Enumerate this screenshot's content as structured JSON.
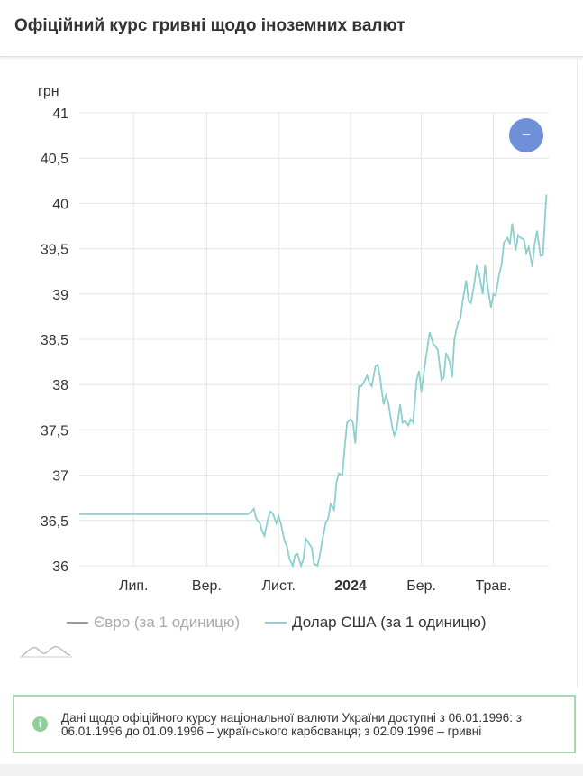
{
  "header": {
    "title": "Офіційний курс гривні щодо іноземних валют"
  },
  "controls": {
    "collapse_symbol": "−"
  },
  "legend": {
    "euro_label": "Євро (за 1 одиницю)",
    "usd_label": "Долар США (за 1 одиницю)"
  },
  "info": {
    "icon": "info-icon",
    "text": "Дані щодо офіційного курсу національної валюти України доступні з 06.01.1996: з 06.01.1996 до 01.09.1996 – українського карбованця; з 02.09.1996 – гривні"
  },
  "colors": {
    "usd_line": "#8ccfd0",
    "euro_line": "#999999",
    "button": "#6f8fd8",
    "info_border": "#a8d8b5"
  },
  "chart_data": {
    "type": "line",
    "ylabel": "грн",
    "ylim": [
      36,
      41
    ],
    "yticks": [
      {
        "value": 41,
        "label": "41"
      },
      {
        "value": 40.5,
        "label": "40,5"
      },
      {
        "value": 40,
        "label": "40"
      },
      {
        "value": 39.5,
        "label": "39,5"
      },
      {
        "value": 39,
        "label": "39"
      },
      {
        "value": 38.5,
        "label": "38,5"
      },
      {
        "value": 38,
        "label": "38"
      },
      {
        "value": 37.5,
        "label": "37,5"
      },
      {
        "value": 37,
        "label": "37"
      },
      {
        "value": 36.5,
        "label": "36,5"
      },
      {
        "value": 36,
        "label": "36"
      }
    ],
    "xlim": [
      "2023-05-16",
      "2024-06-17"
    ],
    "xticks": [
      {
        "date": "2023-07-01",
        "label": "Лип.",
        "bold": false
      },
      {
        "date": "2023-09-01",
        "label": "Вер.",
        "bold": false
      },
      {
        "date": "2023-11-01",
        "label": "Лист.",
        "bold": false
      },
      {
        "date": "2024-01-01",
        "label": "2024",
        "bold": true
      },
      {
        "date": "2024-03-01",
        "label": "Бер.",
        "bold": false
      },
      {
        "date": "2024-05-01",
        "label": "Трав.",
        "bold": false
      }
    ],
    "grid": true,
    "series": [
      {
        "name": "Долар США (за 1 одиницю)",
        "visible": true,
        "points": [
          [
            "2023-05-16",
            36.57
          ],
          [
            "2023-10-06",
            36.57
          ],
          [
            "2023-10-09",
            36.6
          ],
          [
            "2023-10-11",
            36.63
          ],
          [
            "2023-10-13",
            36.52
          ],
          [
            "2023-10-16",
            36.47
          ],
          [
            "2023-10-18",
            36.38
          ],
          [
            "2023-10-20",
            36.33
          ],
          [
            "2023-10-23",
            36.52
          ],
          [
            "2023-10-25",
            36.6
          ],
          [
            "2023-10-27",
            36.58
          ],
          [
            "2023-10-30",
            36.47
          ],
          [
            "2023-11-01",
            36.55
          ],
          [
            "2023-11-03",
            36.46
          ],
          [
            "2023-11-06",
            36.27
          ],
          [
            "2023-11-08",
            36.22
          ],
          [
            "2023-11-10",
            36.08
          ],
          [
            "2023-11-13",
            36.0
          ],
          [
            "2023-11-15",
            36.12
          ],
          [
            "2023-11-17",
            36.13
          ],
          [
            "2023-11-20",
            36.0
          ],
          [
            "2023-11-22",
            36.07
          ],
          [
            "2023-11-24",
            36.3
          ],
          [
            "2023-11-27",
            36.24
          ],
          [
            "2023-11-29",
            36.2
          ],
          [
            "2023-12-01",
            36.02
          ],
          [
            "2023-12-04",
            36.0
          ],
          [
            "2023-12-06",
            36.12
          ],
          [
            "2023-12-08",
            36.28
          ],
          [
            "2023-12-11",
            36.48
          ],
          [
            "2023-12-13",
            36.52
          ],
          [
            "2023-12-15",
            36.68
          ],
          [
            "2023-12-18",
            36.62
          ],
          [
            "2023-12-20",
            36.92
          ],
          [
            "2023-12-22",
            37.02
          ],
          [
            "2023-12-25",
            37.0
          ],
          [
            "2023-12-27",
            37.3
          ],
          [
            "2023-12-29",
            37.58
          ],
          [
            "2024-01-01",
            37.62
          ],
          [
            "2024-01-03",
            37.58
          ],
          [
            "2024-01-05",
            37.35
          ],
          [
            "2024-01-08",
            37.98
          ],
          [
            "2024-01-10",
            37.98
          ],
          [
            "2024-01-12",
            38.02
          ],
          [
            "2024-01-15",
            38.1
          ],
          [
            "2024-01-17",
            38.02
          ],
          [
            "2024-01-19",
            37.98
          ],
          [
            "2024-01-22",
            38.2
          ],
          [
            "2024-01-24",
            38.22
          ],
          [
            "2024-01-26",
            38.08
          ],
          [
            "2024-01-29",
            37.78
          ],
          [
            "2024-01-31",
            37.88
          ],
          [
            "2024-02-02",
            37.8
          ],
          [
            "2024-02-05",
            37.55
          ],
          [
            "2024-02-07",
            37.44
          ],
          [
            "2024-02-09",
            37.5
          ],
          [
            "2024-02-12",
            37.78
          ],
          [
            "2024-02-14",
            37.58
          ],
          [
            "2024-02-16",
            37.6
          ],
          [
            "2024-02-19",
            37.55
          ],
          [
            "2024-02-21",
            37.62
          ],
          [
            "2024-02-23",
            37.58
          ],
          [
            "2024-02-26",
            38.05
          ],
          [
            "2024-02-28",
            38.15
          ],
          [
            "2024-03-01",
            37.92
          ],
          [
            "2024-03-04",
            38.22
          ],
          [
            "2024-03-06",
            38.4
          ],
          [
            "2024-03-08",
            38.58
          ],
          [
            "2024-03-11",
            38.45
          ],
          [
            "2024-03-13",
            38.42
          ],
          [
            "2024-03-15",
            38.38
          ],
          [
            "2024-03-18",
            38.05
          ],
          [
            "2024-03-20",
            38.08
          ],
          [
            "2024-03-22",
            38.35
          ],
          [
            "2024-03-25",
            38.25
          ],
          [
            "2024-03-27",
            38.08
          ],
          [
            "2024-03-29",
            38.5
          ],
          [
            "2024-04-01",
            38.68
          ],
          [
            "2024-04-03",
            38.72
          ],
          [
            "2024-04-05",
            38.92
          ],
          [
            "2024-04-08",
            39.15
          ],
          [
            "2024-04-10",
            38.92
          ],
          [
            "2024-04-12",
            38.9
          ],
          [
            "2024-04-15",
            39.12
          ],
          [
            "2024-04-17",
            39.32
          ],
          [
            "2024-04-19",
            39.22
          ],
          [
            "2024-04-22",
            39.0
          ],
          [
            "2024-04-24",
            39.32
          ],
          [
            "2024-04-26",
            39.1
          ],
          [
            "2024-04-29",
            38.85
          ],
          [
            "2024-05-01",
            39.0
          ],
          [
            "2024-05-03",
            38.98
          ],
          [
            "2024-05-06",
            39.22
          ],
          [
            "2024-05-08",
            39.32
          ],
          [
            "2024-05-10",
            39.57
          ],
          [
            "2024-05-13",
            39.62
          ],
          [
            "2024-05-15",
            39.55
          ],
          [
            "2024-05-17",
            39.78
          ],
          [
            "2024-05-20",
            39.48
          ],
          [
            "2024-05-22",
            39.65
          ],
          [
            "2024-05-24",
            39.62
          ],
          [
            "2024-05-27",
            39.6
          ],
          [
            "2024-05-29",
            39.45
          ],
          [
            "2024-05-31",
            39.52
          ],
          [
            "2024-06-03",
            39.3
          ],
          [
            "2024-06-05",
            39.55
          ],
          [
            "2024-06-07",
            39.7
          ],
          [
            "2024-06-10",
            39.42
          ],
          [
            "2024-06-12",
            39.43
          ],
          [
            "2024-06-14",
            39.88
          ],
          [
            "2024-06-15",
            40.1
          ]
        ]
      }
    ]
  }
}
